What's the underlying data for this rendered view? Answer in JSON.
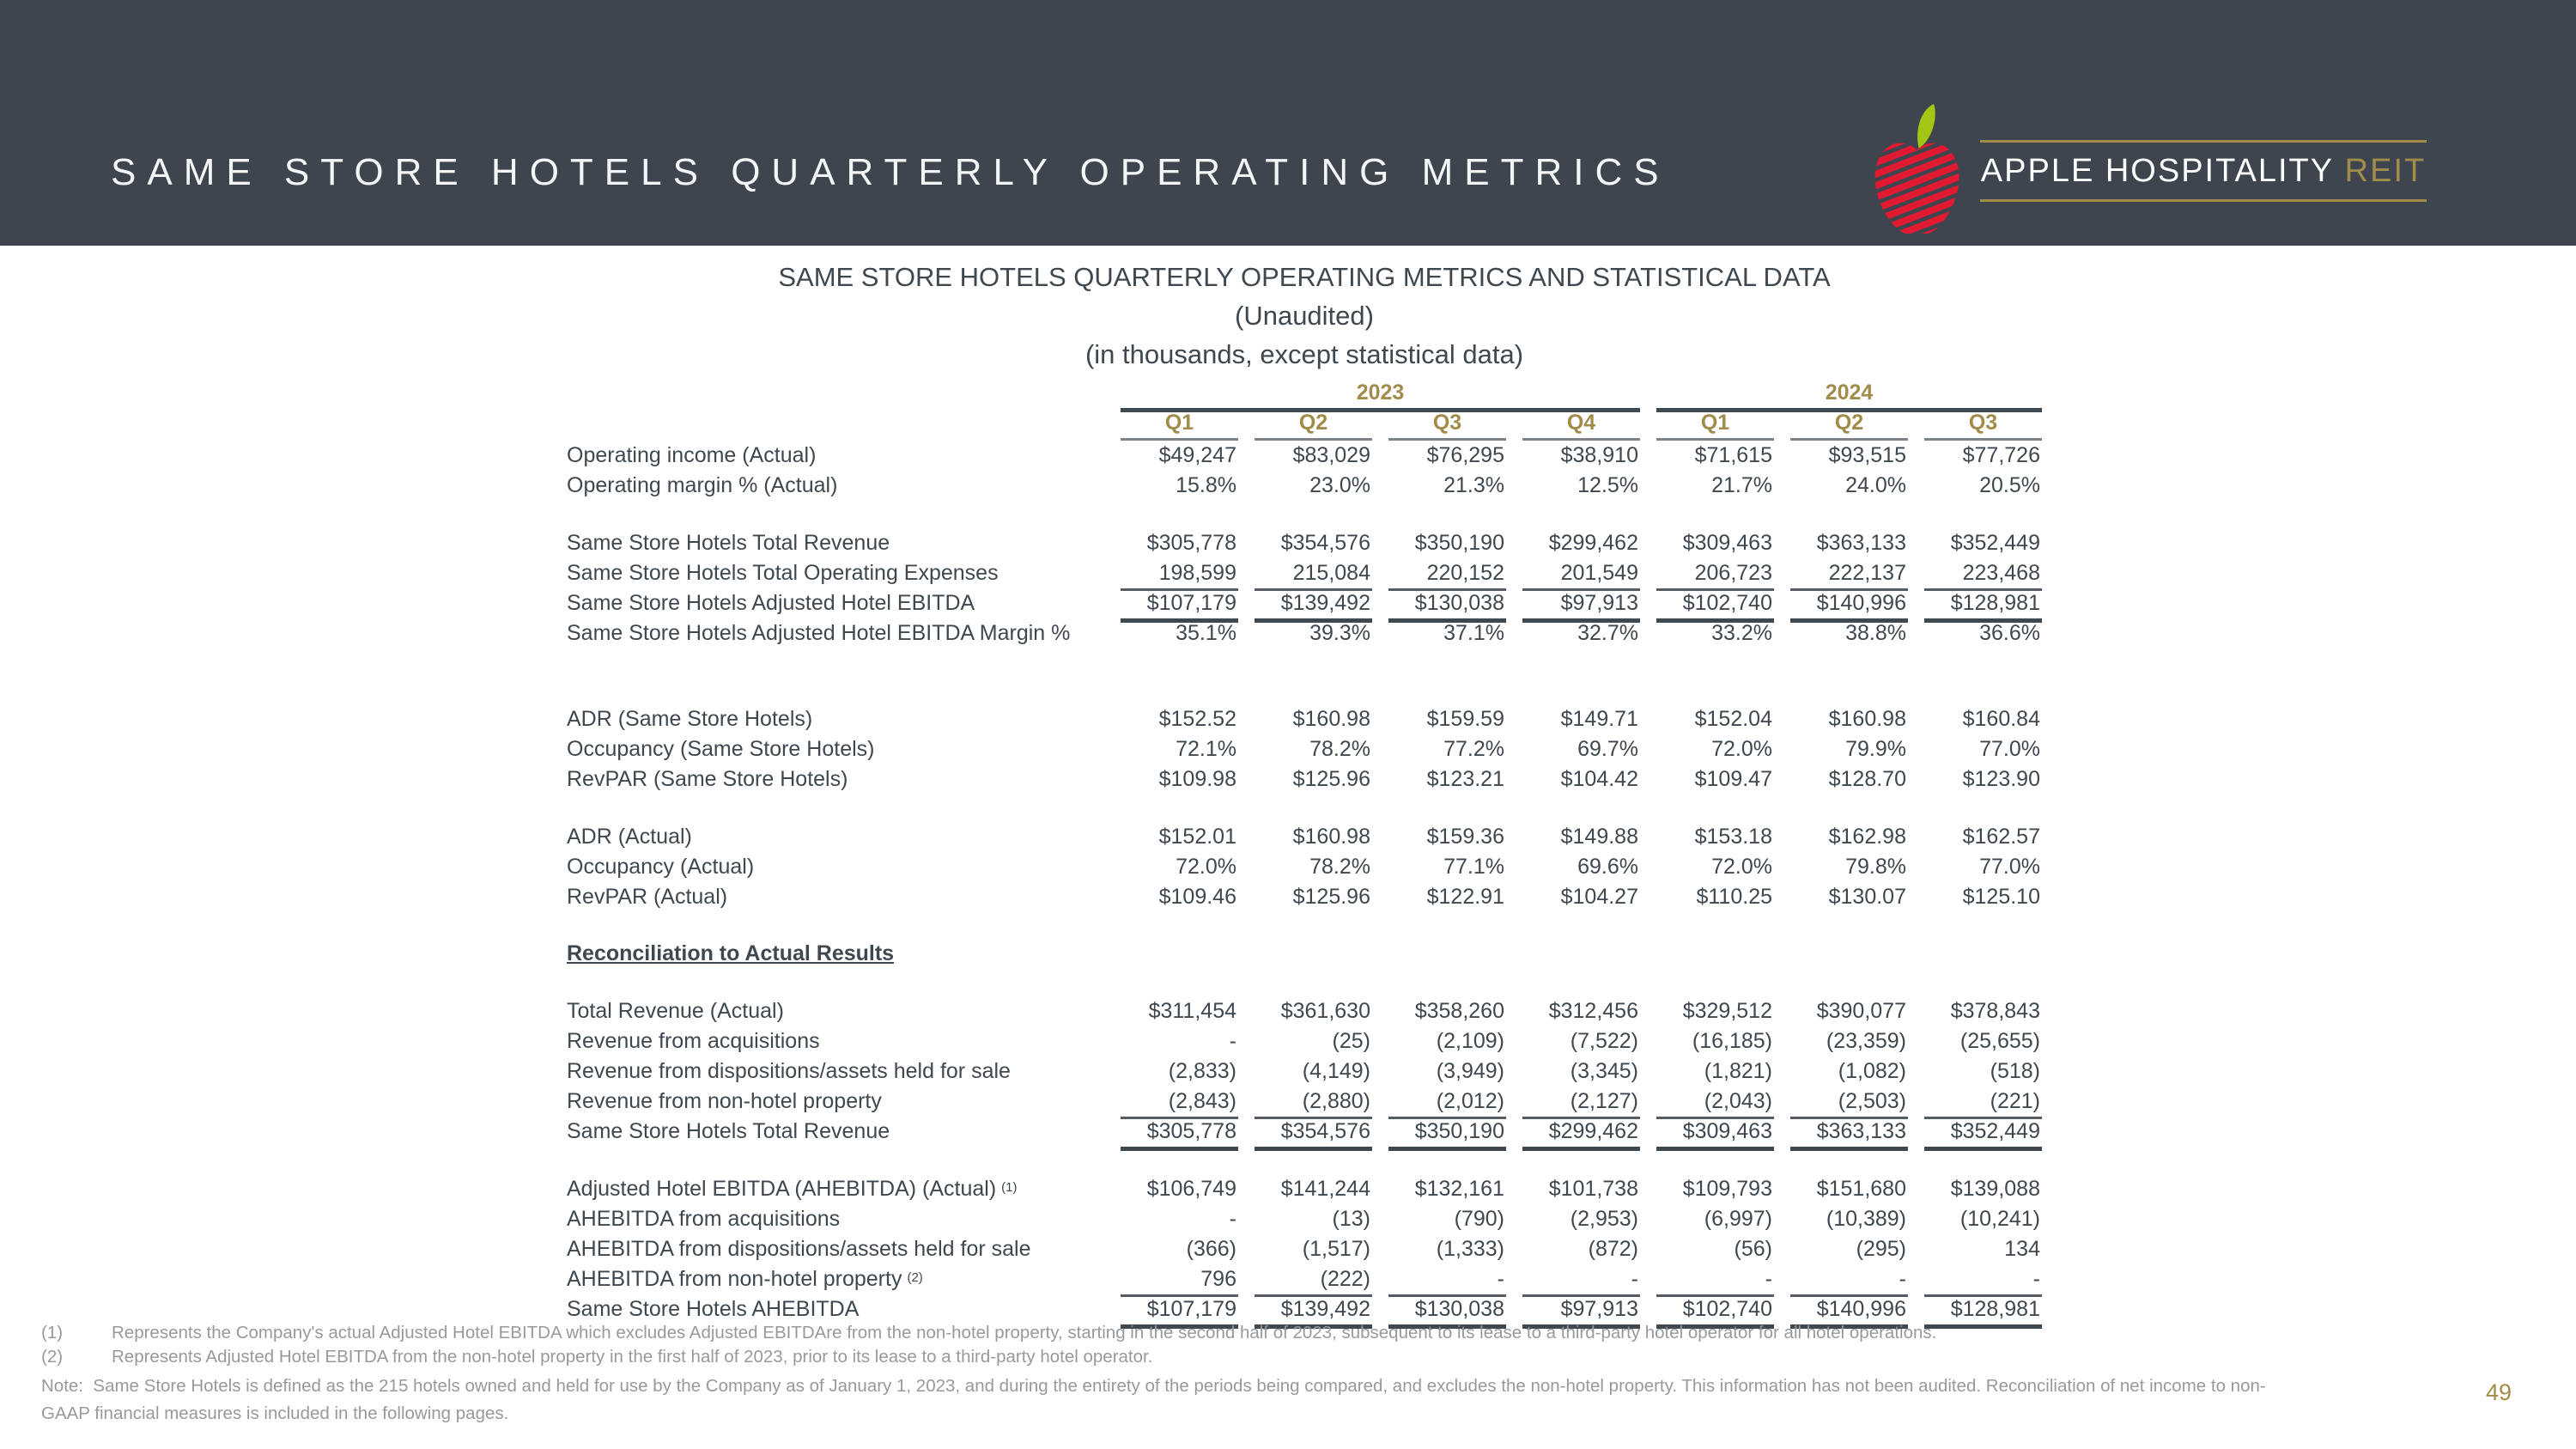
{
  "colors": {
    "banner_background": "#3e454e",
    "accent_gold": "#a18c4a",
    "table_ink": "#3f474f",
    "footnote_gray": "#97999b",
    "apple_red": "#e11931",
    "leaf_green": "#a2c516"
  },
  "banner": {
    "title": "SAME STORE HOTELS QUARTERLY OPERATING METRICS",
    "logo": {
      "name_white": "APPLE HOSPITALITY",
      "name_gold": "REIT"
    }
  },
  "table": {
    "title_lines": {
      "line1": "SAME STORE HOTELS QUARTERLY OPERATING METRICS AND STATISTICAL DATA",
      "line2": "(Unaudited)",
      "line3": "(in thousands, except statistical data)"
    },
    "year_groups": [
      {
        "label": "2023",
        "span": 4
      },
      {
        "label": "2024",
        "span": 3
      }
    ],
    "quarter_headers": [
      "Q1",
      "Q2",
      "Q3",
      "Q4",
      "Q1",
      "Q2",
      "Q3"
    ],
    "rows": [
      {
        "label": "Operating income (Actual)",
        "values": [
          "$49,247",
          "$83,029",
          "$76,295",
          "$38,910",
          "$71,615",
          "$93,515",
          "$77,726"
        ]
      },
      {
        "label": "Operating margin % (Actual)",
        "values": [
          "15.8%",
          "23.0%",
          "21.3%",
          "12.5%",
          "21.7%",
          "24.0%",
          "20.5%"
        ]
      },
      {
        "spacer": 32
      },
      {
        "label": "Same Store Hotels Total Revenue",
        "values": [
          "$305,778",
          "$354,576",
          "$350,190",
          "$299,462",
          "$309,463",
          "$363,133",
          "$352,449"
        ]
      },
      {
        "label": "Same Store Hotels Total Operating Expenses",
        "style": "sub",
        "values": [
          "198,599",
          "215,084",
          "220,152",
          "201,549",
          "206,723",
          "222,137",
          "223,468"
        ]
      },
      {
        "label": "Same Store Hotels Adjusted Hotel EBITDA",
        "style": "total",
        "values": [
          "$107,179",
          "$139,492",
          "$130,038",
          "$97,913",
          "$102,740",
          "$140,996",
          "$128,981"
        ]
      },
      {
        "label": "Same Store Hotels Adjusted Hotel EBITDA Margin %",
        "values": [
          "35.1%",
          "39.3%",
          "37.1%",
          "32.7%",
          "33.2%",
          "38.8%",
          "36.6%"
        ]
      },
      {
        "spacer": 65
      },
      {
        "label": "ADR (Same Store Hotels)",
        "values": [
          "$152.52",
          "$160.98",
          "$159.59",
          "$149.71",
          "$152.04",
          "$160.98",
          "$160.84"
        ]
      },
      {
        "label": "Occupancy (Same Store Hotels)",
        "values": [
          "72.1%",
          "78.2%",
          "77.2%",
          "69.7%",
          "72.0%",
          "79.9%",
          "77.0%"
        ]
      },
      {
        "label": "RevPAR (Same Store Hotels)",
        "values": [
          "$109.98",
          "$125.96",
          "$123.21",
          "$104.42",
          "$109.47",
          "$128.70",
          "$123.90"
        ]
      },
      {
        "spacer": 32
      },
      {
        "label": "ADR (Actual)",
        "values": [
          "$152.01",
          "$160.98",
          "$159.36",
          "$149.88",
          "$153.18",
          "$162.98",
          "$162.57"
        ]
      },
      {
        "label": "Occupancy (Actual)",
        "values": [
          "72.0%",
          "78.2%",
          "77.1%",
          "69.6%",
          "72.0%",
          "79.8%",
          "77.0%"
        ]
      },
      {
        "label": "RevPAR (Actual)",
        "values": [
          "$109.46",
          "$125.96",
          "$122.91",
          "$104.27",
          "$110.25",
          "$130.07",
          "$125.10"
        ]
      },
      {
        "spacer": 31
      },
      {
        "label": "Reconciliation to Actual Results",
        "style": "section"
      },
      {
        "spacer": 32
      },
      {
        "label": "Total Revenue (Actual)",
        "values": [
          "$311,454",
          "$361,630",
          "$358,260",
          "$312,456",
          "$329,512",
          "$390,077",
          "$378,843"
        ]
      },
      {
        "label": "Revenue from acquisitions",
        "values": [
          "-",
          "(25)",
          "(2,109)",
          "(7,522)",
          "(16,185)",
          "(23,359)",
          "(25,655)"
        ]
      },
      {
        "label": "Revenue from dispositions/assets held for sale",
        "values": [
          "(2,833)",
          "(4,149)",
          "(3,949)",
          "(3,345)",
          "(1,821)",
          "(1,082)",
          "(518)"
        ]
      },
      {
        "label": "Revenue from non-hotel property",
        "style": "sub",
        "values": [
          "(2,843)",
          "(2,880)",
          "(2,012)",
          "(2,127)",
          "(2,043)",
          "(2,503)",
          "(221)"
        ]
      },
      {
        "label": "Same Store Hotels Total Revenue",
        "style": "total",
        "values": [
          "$305,778",
          "$354,576",
          "$350,190",
          "$299,462",
          "$309,463",
          "$363,133",
          "$352,449"
        ]
      },
      {
        "spacer": 32
      },
      {
        "label": "Adjusted Hotel EBITDA (AHEBITDA) (Actual)",
        "sup": "(1)",
        "values": [
          "$106,749",
          "$141,244",
          "$132,161",
          "$101,738",
          "$109,793",
          "$151,680",
          "$139,088"
        ]
      },
      {
        "label": "AHEBITDA from acquisitions",
        "values": [
          "-",
          "(13)",
          "(790)",
          "(2,953)",
          "(6,997)",
          "(10,389)",
          "(10,241)"
        ]
      },
      {
        "label": "AHEBITDA from dispositions/assets held for sale",
        "values": [
          "(366)",
          "(1,517)",
          "(1,333)",
          "(872)",
          "(56)",
          "(295)",
          "134"
        ]
      },
      {
        "label": "AHEBITDA from non-hotel property",
        "sup": "(2)",
        "style": "sub",
        "values": [
          "796",
          "(222)",
          "-",
          "-",
          "-",
          "-",
          "-"
        ]
      },
      {
        "label": "Same Store Hotels AHEBITDA",
        "style": "total",
        "values": [
          "$107,179",
          "$139,492",
          "$130,038",
          "$97,913",
          "$102,740",
          "$140,996",
          "$128,981"
        ]
      }
    ]
  },
  "footnotes": [
    {
      "marker": "(1)",
      "text": "Represents the Company's actual Adjusted Hotel EBITDA which excludes Adjusted EBITDAre from the non-hotel property, starting in the second half of 2023, subsequent to its lease to a third-party hotel operator for all hotel operations."
    },
    {
      "marker": "(2)",
      "text": "Represents Adjusted Hotel EBITDA from the non-hotel property in the first half of 2023, prior to its lease to a third-party hotel operator."
    }
  ],
  "note_label": "Note:",
  "note_text": "Same Store Hotels is defined as the 215 hotels owned and held for use by the Company as of January 1, 2023, and during the entirety of the periods being compared, and excludes the non-hotel property. This information has not been audited. Reconciliation of net income to non-GAAP financial measures is included in the following pages.",
  "page_number": "49"
}
